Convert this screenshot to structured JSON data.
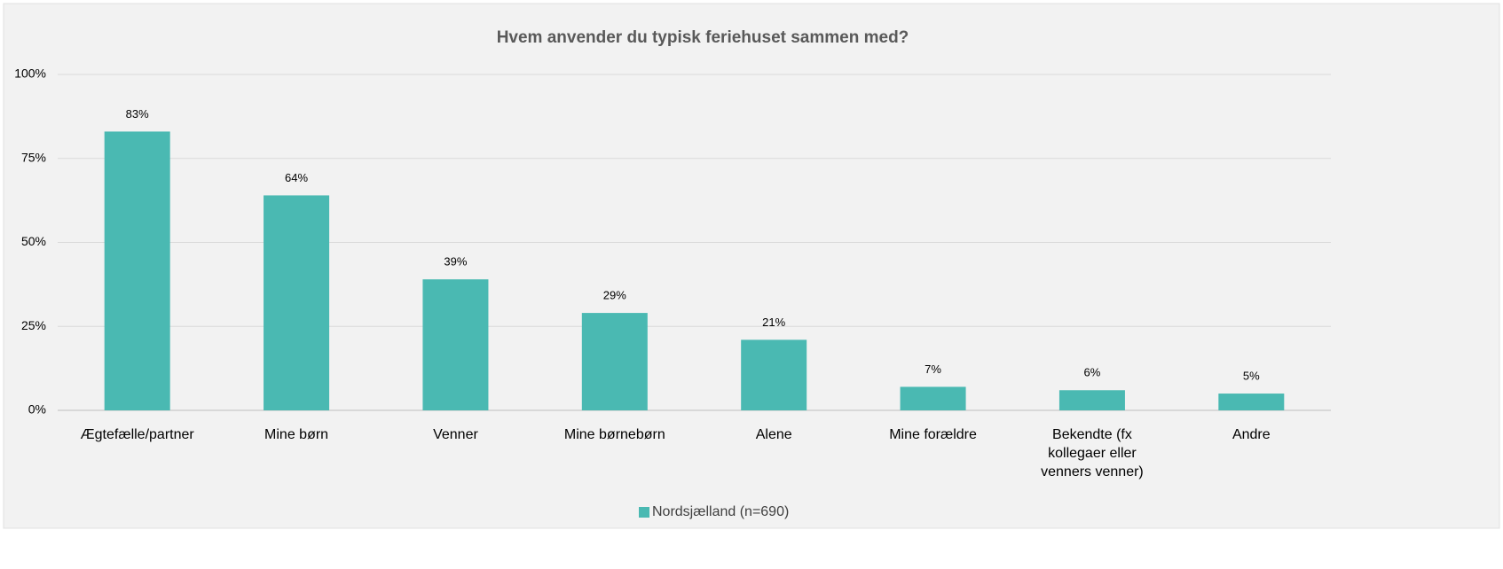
{
  "chart_data": {
    "type": "bar",
    "title": "Hvem anvender du typisk feriehuset sammen med?",
    "categories": [
      "Ægtefælle/partner",
      "Mine børn",
      "Venner",
      "Mine børnebørn",
      "Alene",
      "Mine forældre",
      "Bekendte (fx kollegaer eller venners venner)",
      "Andre"
    ],
    "series": [
      {
        "name": "Nordsjælland (n=690)",
        "color": "#4ab9b2",
        "values": [
          83,
          64,
          39,
          29,
          21,
          7,
          6,
          5
        ],
        "value_labels": [
          "83%",
          "64%",
          "39%",
          "29%",
          "21%",
          "7%",
          "6%",
          "5%"
        ]
      }
    ],
    "ylim": [
      0,
      100
    ],
    "yticks": [
      {
        "value": 0,
        "label": "0%"
      },
      {
        "value": 25,
        "label": "25%"
      },
      {
        "value": 50,
        "label": "50%"
      },
      {
        "value": 75,
        "label": "75%"
      },
      {
        "value": 100,
        "label": "100%"
      }
    ],
    "grid": true,
    "legend": "bottom"
  }
}
